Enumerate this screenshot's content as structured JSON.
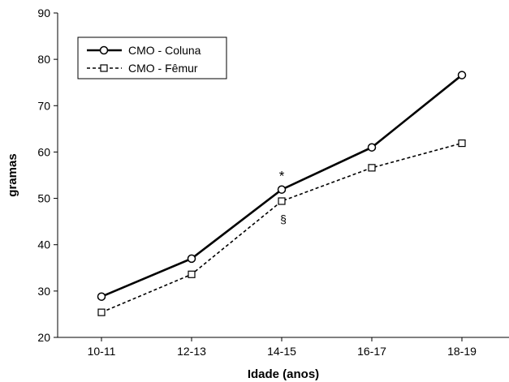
{
  "chart_data": {
    "type": "line",
    "categories": [
      "10-11",
      "12-13",
      "14-15",
      "16-17",
      "18-19"
    ],
    "series": [
      {
        "name": "CMO - Coluna",
        "values": [
          28.8,
          37.0,
          51.9,
          61.0,
          76.6
        ],
        "marker": "circle",
        "line_style": "solid"
      },
      {
        "name": "CMO - Fêmur",
        "values": [
          25.4,
          33.6,
          49.4,
          56.6,
          61.9
        ],
        "marker": "square",
        "line_style": "dashed"
      }
    ],
    "xlabel": "Idade (anos)",
    "ylabel": "gramas",
    "ylim": [
      20,
      90
    ],
    "yticks": [
      20,
      30,
      40,
      50,
      60,
      70,
      80,
      90
    ],
    "grid": false,
    "legend_position": "top-left",
    "annotations": [
      {
        "text": "*",
        "category": "14-15",
        "series": "CMO - Coluna",
        "placement": "above"
      },
      {
        "text": "§",
        "category": "14-15",
        "series": "CMO - Fêmur",
        "placement": "below"
      }
    ],
    "colors": {
      "series": "#000000",
      "background": "#ffffff"
    }
  }
}
